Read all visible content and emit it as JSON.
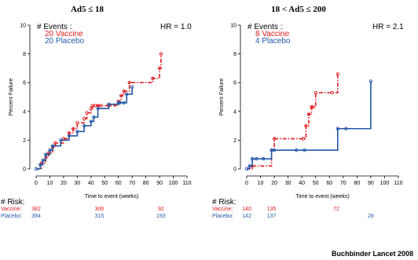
{
  "colors": {
    "vaccine": "#e0191b",
    "placebo": "#2258a8",
    "axis": "#000000"
  },
  "chart_data": [
    {
      "type": "line",
      "title": "Ad5 ≤ 18",
      "xlabel": "Time to event (weeks)",
      "ylabel": "Percent Failure",
      "xlim": [
        0,
        110
      ],
      "ylim": [
        0,
        10
      ],
      "xticks": [
        "0",
        "10",
        "20",
        "30",
        "40",
        "50",
        "60",
        "70",
        "80",
        "90",
        "100",
        "110"
      ],
      "yticks": [
        "0",
        "2",
        "4",
        "6",
        "8",
        "10"
      ],
      "events_heading": "# Events :",
      "events": [
        "20 Vaccine",
        "20 Placebo"
      ],
      "hr": "HR = 1.0",
      "series": [
        {
          "name": "Vaccine",
          "x": [
            0,
            4,
            7,
            9,
            12,
            14,
            20,
            24,
            27,
            30,
            35,
            37,
            40,
            41,
            43,
            45,
            47,
            53,
            60,
            62,
            64,
            68,
            85,
            90,
            91
          ],
          "y": [
            0,
            0.4,
            0.8,
            1.1,
            1.5,
            1.8,
            2.1,
            2.5,
            2.8,
            3.2,
            3.5,
            3.9,
            4.2,
            4.4,
            4.4,
            4.4,
            4.4,
            4.4,
            4.7,
            5.1,
            5.4,
            6.0,
            6.3,
            7.0,
            8.0
          ]
        },
        {
          "name": "Placebo",
          "x": [
            0,
            3,
            5,
            7,
            10,
            12,
            18,
            24,
            30,
            35,
            40,
            42,
            45,
            53,
            60,
            61,
            64,
            66,
            70
          ],
          "y": [
            0,
            0.3,
            0.6,
            1.0,
            1.3,
            1.6,
            2.0,
            2.3,
            2.6,
            3.0,
            3.3,
            3.6,
            4.2,
            4.5,
            4.6,
            4.6,
            4.6,
            5.2,
            5.7
          ]
        }
      ],
      "risk_times": [
        0,
        46,
        91
      ],
      "risk": {
        "vaccine": [
          "382",
          "306",
          "92"
        ],
        "placebo": [
          "394",
          "315",
          "193"
        ]
      }
    },
    {
      "type": "line",
      "title": "18 < Ad5 ≤ 200",
      "xlabel": "Time to event (weeks)",
      "ylabel": "Percent Failure",
      "xlim": [
        0,
        110
      ],
      "ylim": [
        0,
        10
      ],
      "xticks": [
        "0",
        "10",
        "20",
        "30",
        "40",
        "50",
        "60",
        "70",
        "80",
        "90",
        "100",
        "110"
      ],
      "yticks": [
        "0",
        "2",
        "4",
        "6",
        "8",
        "10"
      ],
      "events_heading": "# Events :",
      "events": [
        "8 Vaccine",
        "4 Placebo"
      ],
      "hr": "HR = 2.1",
      "series": [
        {
          "name": "Vaccine",
          "x": [
            0,
            4,
            18,
            20,
            41,
            43,
            45,
            47,
            48,
            50,
            62,
            66
          ],
          "y": [
            0,
            0.2,
            1.3,
            2.1,
            2.1,
            3.0,
            3.8,
            4.3,
            4.3,
            5.3,
            5.3,
            6.6
          ]
        },
        {
          "name": "Placebo",
          "x": [
            0,
            2,
            4,
            7,
            12,
            18,
            20,
            36,
            42,
            66,
            72,
            90
          ],
          "y": [
            0,
            0.2,
            0.7,
            0.7,
            0.7,
            1.3,
            1.3,
            1.3,
            1.3,
            2.8,
            2.8,
            6.1
          ]
        }
      ],
      "risk_times": [
        0,
        18,
        65,
        90
      ],
      "risk": {
        "vaccine": [
          "140",
          "135",
          "72",
          ""
        ],
        "placebo": [
          "142",
          "137",
          "",
          "28"
        ]
      }
    }
  ],
  "risk_heading": "# Risk:",
  "risk_labels": {
    "vaccine": "Vaccine:",
    "placebo": "Placebo:"
  },
  "credit": "Buchbinder  Lancet 2008"
}
